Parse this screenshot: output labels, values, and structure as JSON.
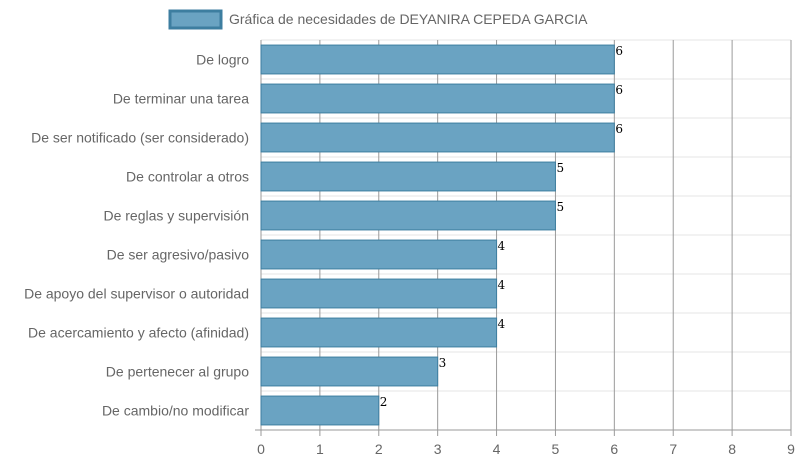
{
  "chart_data": {
    "type": "bar",
    "orientation": "horizontal",
    "legend": "top-center",
    "grid": true,
    "xlim": [
      0,
      9
    ],
    "x_ticks": [
      "0",
      "1",
      "2",
      "3",
      "4",
      "5",
      "6",
      "7",
      "8",
      "9"
    ],
    "categories": [
      "De logro",
      "De terminar una tarea",
      "De ser notificado (ser considerado)",
      "De controlar a otros",
      "De reglas y supervisión",
      "De ser agresivo/pasivo",
      "De apoyo del supervisor o autoridad",
      "De acercamiento y afecto (afinidad)",
      "De pertenecer al grupo",
      "De cambio/no modificar"
    ],
    "series": [
      {
        "name": "Gráfica de necesidades de DEYANIRA CEPEDA GARCIA",
        "values": [
          6,
          6,
          6,
          5,
          5,
          4,
          4,
          4,
          3,
          2
        ],
        "labels": [
          "6",
          "6",
          "6",
          "5",
          "5",
          "4",
          "4",
          "4",
          "3",
          "2"
        ],
        "color": "#6aa3c2",
        "border_color": "#3d7ea0"
      }
    ]
  }
}
